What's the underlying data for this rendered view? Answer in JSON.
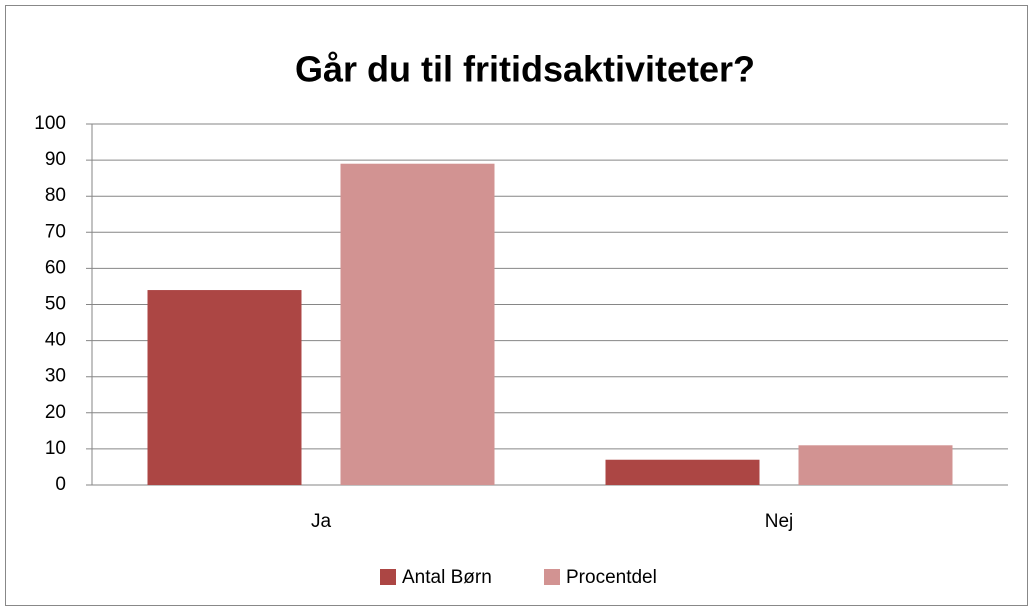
{
  "chart_data": {
    "type": "bar",
    "title": "Går du til fritidsaktiviteter?",
    "categories": [
      "Ja",
      "Nej"
    ],
    "series": [
      {
        "name": "Antal Børn",
        "color": "#ac4644",
        "values": [
          54,
          7
        ]
      },
      {
        "name": "Procentdel",
        "color": "#d29392",
        "values": [
          89,
          11
        ]
      }
    ],
    "ylim": [
      0,
      100
    ],
    "yticks": [
      0,
      10,
      20,
      30,
      40,
      50,
      60,
      70,
      80,
      90,
      100
    ],
    "grid": true,
    "legend": "bottom"
  }
}
